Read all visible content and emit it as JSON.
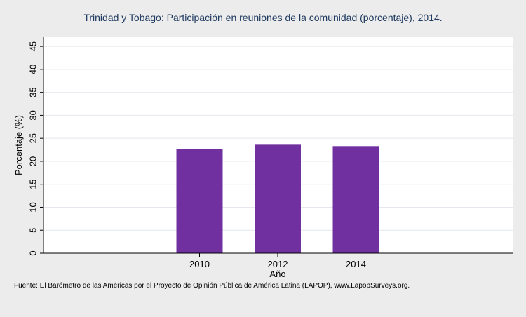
{
  "chart_data": {
    "type": "bar",
    "title": "Trinidad y Tobago: Participación en reuniones de la comunidad (porcentaje), 2014.",
    "xlabel": "Año",
    "ylabel": "Porcentaje (%)",
    "categories": [
      "2010",
      "2012",
      "2014"
    ],
    "values": [
      22.6,
      23.6,
      23.3
    ],
    "ylim": [
      0,
      47
    ],
    "yticks": [
      0,
      5,
      10,
      15,
      20,
      25,
      30,
      35,
      40,
      45
    ],
    "grid": true,
    "legend": "none",
    "colors": {
      "bar": "#7030a0",
      "background": "#ececec",
      "plot_background": "#ffffff",
      "grid": "#e4e8ee"
    }
  },
  "footer": {
    "source": "Fuente: El Barómetro de las Américas por el Proyecto de Opinión Pública de América Latina (LAPOP), www.LapopSurveys.org."
  }
}
